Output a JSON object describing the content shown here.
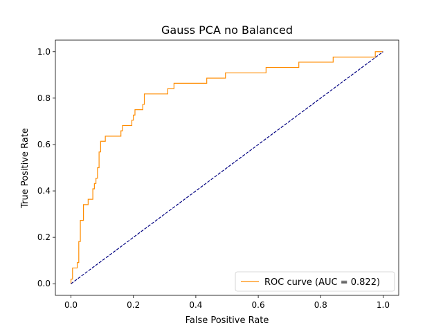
{
  "chart_data": {
    "type": "line",
    "title": "Gauss PCA no Balanced",
    "xlabel": "False Positive Rate",
    "ylabel": "True Positive Rate",
    "xlim": [
      -0.05,
      1.05
    ],
    "ylim": [
      -0.05,
      1.05
    ],
    "xticks": [
      "0.0",
      "0.2",
      "0.4",
      "0.6",
      "0.8",
      "1.0"
    ],
    "yticks": [
      "0.0",
      "0.2",
      "0.4",
      "0.6",
      "0.8",
      "1.0"
    ],
    "grid": false,
    "legend_position": "lower-right",
    "series": [
      {
        "name": "ROC curve (AUC = 0.822)",
        "color": "#ff8c00",
        "style": "solid",
        "x": [
          0.0,
          0.0,
          0.005,
          0.005,
          0.02,
          0.02,
          0.025,
          0.025,
          0.03,
          0.03,
          0.04,
          0.04,
          0.055,
          0.055,
          0.07,
          0.07,
          0.075,
          0.075,
          0.08,
          0.08,
          0.085,
          0.085,
          0.09,
          0.09,
          0.095,
          0.095,
          0.1,
          0.1,
          0.11,
          0.11,
          0.12,
          0.12,
          0.16,
          0.16,
          0.165,
          0.165,
          0.195,
          0.195,
          0.2,
          0.2,
          0.205,
          0.205,
          0.23,
          0.23,
          0.235,
          0.235,
          0.31,
          0.31,
          0.33,
          0.33,
          0.435,
          0.435,
          0.495,
          0.495,
          0.625,
          0.625,
          0.73,
          0.73,
          0.84,
          0.84,
          0.975,
          0.975,
          1.0
        ],
        "y": [
          0.0,
          0.02,
          0.02,
          0.068,
          0.068,
          0.091,
          0.091,
          0.182,
          0.182,
          0.273,
          0.273,
          0.341,
          0.341,
          0.364,
          0.364,
          0.409,
          0.409,
          0.432,
          0.432,
          0.455,
          0.455,
          0.5,
          0.5,
          0.568,
          0.568,
          0.614,
          0.614,
          0.614,
          0.614,
          0.636,
          0.636,
          0.636,
          0.636,
          0.659,
          0.659,
          0.682,
          0.682,
          0.705,
          0.705,
          0.727,
          0.727,
          0.75,
          0.75,
          0.773,
          0.773,
          0.818,
          0.818,
          0.841,
          0.841,
          0.864,
          0.864,
          0.886,
          0.886,
          0.909,
          0.909,
          0.932,
          0.932,
          0.955,
          0.955,
          0.977,
          0.977,
          1.0,
          1.0
        ]
      },
      {
        "name": "",
        "color": "#000080",
        "style": "dashed",
        "x": [
          0.0,
          1.0
        ],
        "y": [
          0.0,
          1.0
        ]
      }
    ]
  }
}
